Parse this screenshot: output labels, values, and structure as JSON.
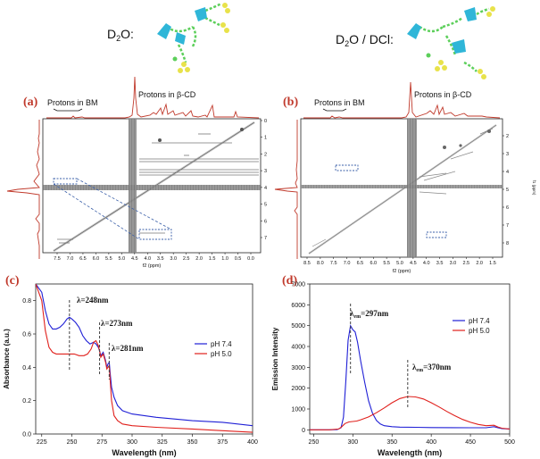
{
  "top_labels": {
    "left_solvent_prefix": "D",
    "left_solvent_sub": "2",
    "left_solvent_suffix": "O:",
    "right_solvent_prefix": "D",
    "right_solvent_sub": "2",
    "right_solvent_suffix": "O / DCl:"
  },
  "colors": {
    "spectrum_red": "#c0392b",
    "blue": "#1f1fd6",
    "red": "#e0201c",
    "cyan": "#2fb6d8",
    "green": "#5ccf5a",
    "yellow": "#e8e24a",
    "dashed_box": "#3a5fa8"
  },
  "panel_a": {
    "tag": "(a)",
    "label_bm": "Protons in BM",
    "label_cd": "Protons in β-CD",
    "xlabel": "f2 (ppm)",
    "x_ticks": [
      "7.5",
      "7.0",
      "6.5",
      "6.0",
      "5.5",
      "5.0",
      "4.5",
      "4.0",
      "3.5",
      "3.0",
      "2.5",
      "2.0",
      "1.5",
      "1.0",
      "0.5",
      "0.0"
    ],
    "y_ticks": [
      "0",
      "1",
      "2",
      "3",
      "4",
      "5",
      "6",
      "7"
    ]
  },
  "panel_b": {
    "tag": "(b)",
    "label_bm": "Protons in BM",
    "label_cd": "Protons in β-CD",
    "xlabel": "f2 (ppm)",
    "ylabel": "f1 (ppm)",
    "x_ticks": [
      "8.5",
      "8.0",
      "7.5",
      "7.0",
      "6.5",
      "6.0",
      "5.5",
      "5.0",
      "4.5",
      "4.0",
      "3.5",
      "3.0",
      "2.5",
      "2.0",
      "1.5"
    ],
    "y_ticks": [
      "2",
      "3",
      "4",
      "5",
      "6",
      "7",
      "8"
    ]
  },
  "chart_data": [
    {
      "id": "c",
      "type": "line",
      "tag": "(c)",
      "xlabel": "Wavelength (nm)",
      "ylabel": "Absorbance (a.u.)",
      "xlim": [
        220,
        400
      ],
      "ylim": [
        0.0,
        0.9
      ],
      "x_ticks": [
        225,
        250,
        275,
        300,
        325,
        350,
        375,
        400
      ],
      "y_ticks": [
        0.0,
        0.2,
        0.4,
        0.6,
        0.8
      ],
      "x_tick_labels": [
        "225",
        "250",
        "275",
        "300",
        "325",
        "350",
        "375",
        "400"
      ],
      "y_tick_labels": [
        "0.0",
        "0.2",
        "0.4",
        "0.6",
        "0.8"
      ],
      "annotations": [
        {
          "text": "λ=248nm",
          "x": 248
        },
        {
          "text": "λ=273nm",
          "x": 273
        },
        {
          "text": "λ=281nm",
          "x": 281
        }
      ],
      "series": [
        {
          "name": "pH 7.4",
          "color": "#1f1fd6",
          "x": [
            220,
            225,
            228,
            231,
            234,
            237,
            240,
            243,
            246,
            248,
            250,
            253,
            256,
            259,
            262,
            265,
            268,
            270,
            272,
            273,
            274,
            276,
            278,
            279,
            280,
            281,
            282,
            283,
            285,
            288,
            292,
            300,
            320,
            350,
            375,
            400
          ],
          "y": [
            0.9,
            0.85,
            0.74,
            0.66,
            0.63,
            0.63,
            0.64,
            0.66,
            0.69,
            0.7,
            0.69,
            0.67,
            0.64,
            0.59,
            0.56,
            0.54,
            0.55,
            0.54,
            0.52,
            0.5,
            0.47,
            0.49,
            0.44,
            0.4,
            0.42,
            0.43,
            0.35,
            0.28,
            0.22,
            0.17,
            0.14,
            0.12,
            0.1,
            0.08,
            0.07,
            0.05
          ]
        },
        {
          "name": "pH 5.0",
          "color": "#e0201c",
          "x": [
            220,
            225,
            228,
            231,
            234,
            237,
            240,
            244,
            248,
            252,
            256,
            260,
            263,
            266,
            268,
            270,
            272,
            273,
            274,
            276,
            278,
            279,
            280,
            281,
            282,
            283,
            285,
            288,
            292,
            300,
            320,
            350,
            375,
            400
          ],
          "y": [
            0.9,
            0.8,
            0.62,
            0.52,
            0.49,
            0.48,
            0.48,
            0.48,
            0.48,
            0.48,
            0.47,
            0.47,
            0.48,
            0.51,
            0.55,
            0.56,
            0.53,
            0.5,
            0.46,
            0.48,
            0.43,
            0.39,
            0.4,
            0.41,
            0.3,
            0.2,
            0.11,
            0.08,
            0.06,
            0.05,
            0.04,
            0.03,
            0.02,
            0.01
          ]
        }
      ],
      "legend": "right"
    },
    {
      "id": "d",
      "type": "line",
      "tag": "(d)",
      "xlabel": "Wavelength (nm)",
      "ylabel": "Emission Intensity",
      "xlim": [
        245,
        500
      ],
      "ylim": [
        -200,
        7000
      ],
      "x_ticks": [
        250,
        300,
        350,
        400,
        450,
        500
      ],
      "y_ticks": [
        0,
        1000,
        2000,
        3000,
        4000,
        5000,
        6000,
        7000
      ],
      "x_tick_labels": [
        "250",
        "300",
        "350",
        "400",
        "450",
        "500"
      ],
      "y_tick_labels": [
        "0",
        "1000",
        "2000",
        "3000",
        "4000",
        "5000",
        "6000",
        "7000"
      ],
      "annotations": [
        {
          "text_main": "λ",
          "text_sub": "em",
          "text_tail": "=297nm",
          "x": 297
        },
        {
          "text_main": "λ",
          "text_sub": "em",
          "text_tail": "=370nm",
          "x": 370
        }
      ],
      "series": [
        {
          "name": "pH 7.4",
          "color": "#1f1fd6",
          "x": [
            245,
            270,
            280,
            285,
            288,
            291,
            294,
            297,
            300,
            303,
            306,
            310,
            315,
            320,
            325,
            330,
            335,
            340,
            350,
            360,
            380,
            400,
            450,
            470,
            480,
            485,
            490,
            500
          ],
          "y": [
            0,
            0,
            10,
            100,
            600,
            2300,
            4300,
            5000,
            4800,
            4700,
            4200,
            3300,
            2300,
            1400,
            800,
            450,
            280,
            200,
            150,
            130,
            120,
            110,
            100,
            100,
            150,
            100,
            60,
            40
          ]
        },
        {
          "name": "pH 5.0",
          "color": "#e0201c",
          "x": [
            245,
            270,
            282,
            286,
            290,
            295,
            300,
            305,
            310,
            320,
            330,
            340,
            350,
            360,
            370,
            380,
            390,
            400,
            410,
            420,
            430,
            440,
            450,
            460,
            470,
            480,
            485,
            490,
            500
          ],
          "y": [
            0,
            0,
            40,
            150,
            300,
            380,
            400,
            420,
            480,
            620,
            820,
            1050,
            1300,
            1500,
            1600,
            1580,
            1480,
            1300,
            1100,
            880,
            680,
            500,
            360,
            260,
            200,
            220,
            140,
            80,
            40
          ]
        }
      ],
      "legend": "right"
    }
  ]
}
